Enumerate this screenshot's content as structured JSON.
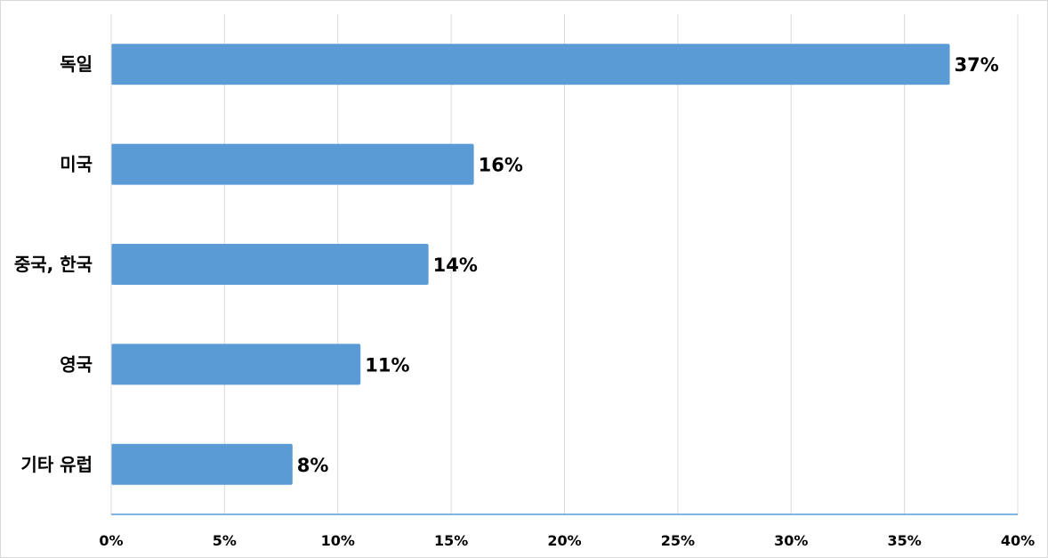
{
  "chart_data": {
    "type": "bar",
    "orientation": "horizontal",
    "categories": [
      "독일",
      "미국",
      "중국, 한국",
      "영국",
      "기타 유럽"
    ],
    "values": [
      37,
      16,
      14,
      11,
      8
    ],
    "data_labels": [
      "37%",
      "16%",
      "14%",
      "11%",
      "8%"
    ],
    "x_ticks": [
      "0%",
      "5%",
      "10%",
      "15%",
      "20%",
      "25%",
      "30%",
      "35%",
      "40%"
    ],
    "xlim": [
      0,
      40
    ],
    "xlabel": "",
    "ylabel": "",
    "title": "",
    "grid": "vertical",
    "legend": "none",
    "bar_color": "#5b9bd5"
  }
}
